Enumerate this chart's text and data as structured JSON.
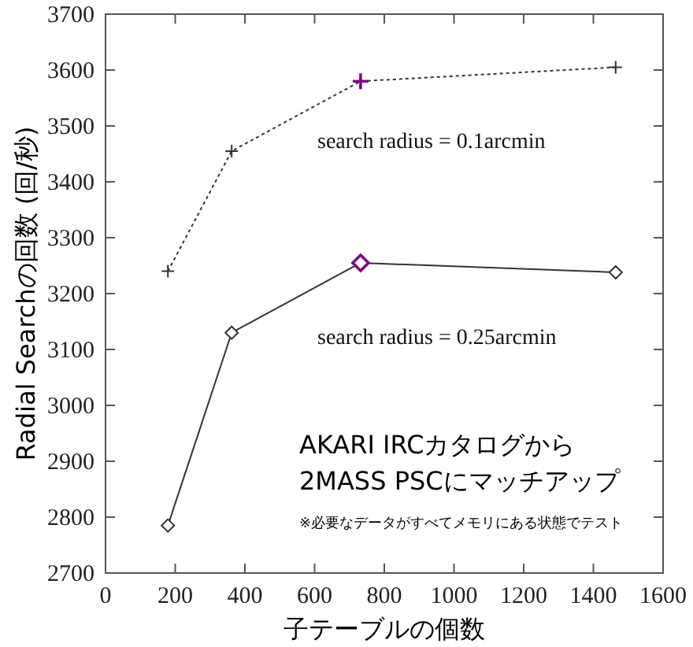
{
  "chart_data": {
    "type": "line",
    "xlabel": "子テーブルの個数",
    "ylabel": "Radial Searchの回数 (回/秒)",
    "xlim": [
      0,
      1600
    ],
    "xticks": [
      0,
      200,
      400,
      600,
      800,
      1000,
      1200,
      1400,
      1600
    ],
    "ylim": [
      2700,
      3700
    ],
    "yticks": [
      2700,
      2800,
      2900,
      3000,
      3100,
      3200,
      3300,
      3400,
      3500,
      3600,
      3700
    ],
    "grid": false,
    "legend": false,
    "series": [
      {
        "name": "search radius = 0.1arcmin",
        "color": "#333333",
        "line_style": "dotted",
        "marker": "cross",
        "x": [
          179,
          362,
          732,
          1464
        ],
        "values": [
          3240,
          3455,
          3580,
          3605
        ],
        "colors": [
          "#333333",
          "#333333",
          "#800080",
          "#333333"
        ]
      },
      {
        "name": "search radius = 0.25arcmin",
        "color": "#333333",
        "line_style": "solid",
        "marker": "diamond",
        "x": [
          179,
          362,
          732,
          1464
        ],
        "values": [
          2785,
          3130,
          3255,
          3238
        ],
        "colors": [
          "#333333",
          "#333333",
          "#800080",
          "#333333"
        ]
      }
    ],
    "annotations": [
      "AKARI IRCカタログから",
      "2MASS PSCにマッチアップ",
      "※必要なデータがすべてメモリにある状態でテスト"
    ]
  }
}
